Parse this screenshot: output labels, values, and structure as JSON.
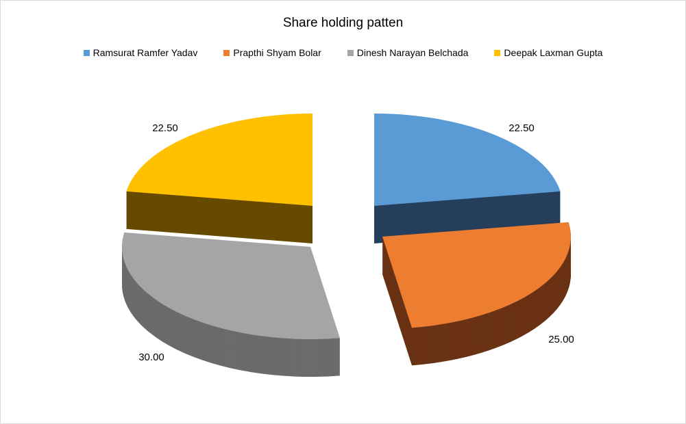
{
  "chart_data": {
    "type": "pie",
    "style": "3d-exploded",
    "title": "Share holding patten",
    "legend_position": "top",
    "categories": [
      "Ramsurat Ramfer Yadav",
      "Prapthi Shyam Bolar",
      "Dinesh Narayan Belchada",
      "Deepak Laxman Gupta"
    ],
    "values": [
      22.5,
      25.0,
      30.0,
      22.5
    ],
    "data_labels": [
      "22.50",
      "25.00",
      "30.00",
      "22.50"
    ],
    "colors": [
      "#5b9bd5",
      "#ed7d31",
      "#a5a5a5",
      "#ffc000"
    ],
    "side_colors": [
      "#243f5c",
      "#6a3214",
      "#6b6b6b",
      "#664a00"
    ]
  }
}
